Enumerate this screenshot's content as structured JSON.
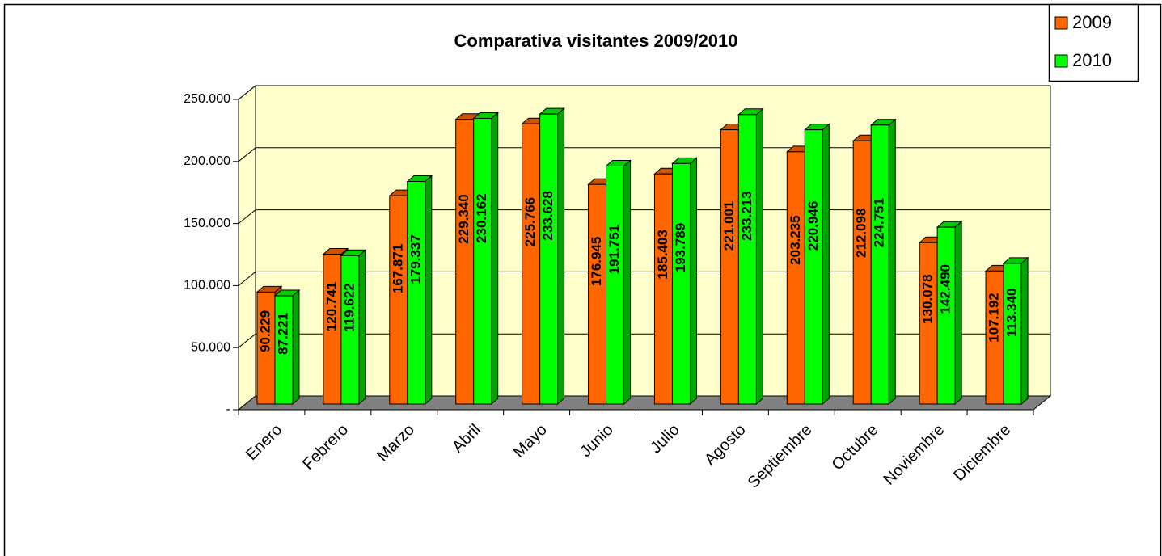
{
  "chart_data": {
    "type": "bar",
    "title": "Comparativa visitantes 2009/2010",
    "categories": [
      "Enero",
      "Febrero",
      "Marzo",
      "Abril",
      "Mayo",
      "Junio",
      "Julio",
      "Agosto",
      "Septiembre",
      "Octubre",
      "Noviembre",
      "Diciembre"
    ],
    "series": [
      {
        "name": "2009",
        "color": "#ff6600",
        "values": [
          90229,
          120741,
          167871,
          229340,
          225766,
          176945,
          185403,
          221001,
          203235,
          212098,
          130078,
          107192
        ],
        "value_labels": [
          "90.229",
          "120.741",
          "167.871",
          "229.340",
          "225.766",
          "176.945",
          "185.403",
          "221.001",
          "203.235",
          "212.098",
          "130.078",
          "107.192"
        ]
      },
      {
        "name": "2010",
        "color": "#00ff00",
        "values": [
          87221,
          119622,
          179337,
          230162,
          233628,
          191751,
          193789,
          233213,
          220946,
          224751,
          142490,
          113340
        ],
        "value_labels": [
          "87.221",
          "119.622",
          "179.337",
          "230.162",
          "233.628",
          "191.751",
          "193.789",
          "233.213",
          "220.946",
          "224.751",
          "142.490",
          "113.340"
        ]
      }
    ],
    "ylim": [
      0,
      250000
    ],
    "yticks": [
      {
        "value": 0,
        "label": "-"
      },
      {
        "value": 50000,
        "label": "50.000"
      },
      {
        "value": 100000,
        "label": "100.000"
      },
      {
        "value": 150000,
        "label": "150.000"
      },
      {
        "value": 200000,
        "label": "200.000"
      },
      {
        "value": 250000,
        "label": "250.000"
      }
    ],
    "grid": true,
    "legend": "top-right"
  }
}
